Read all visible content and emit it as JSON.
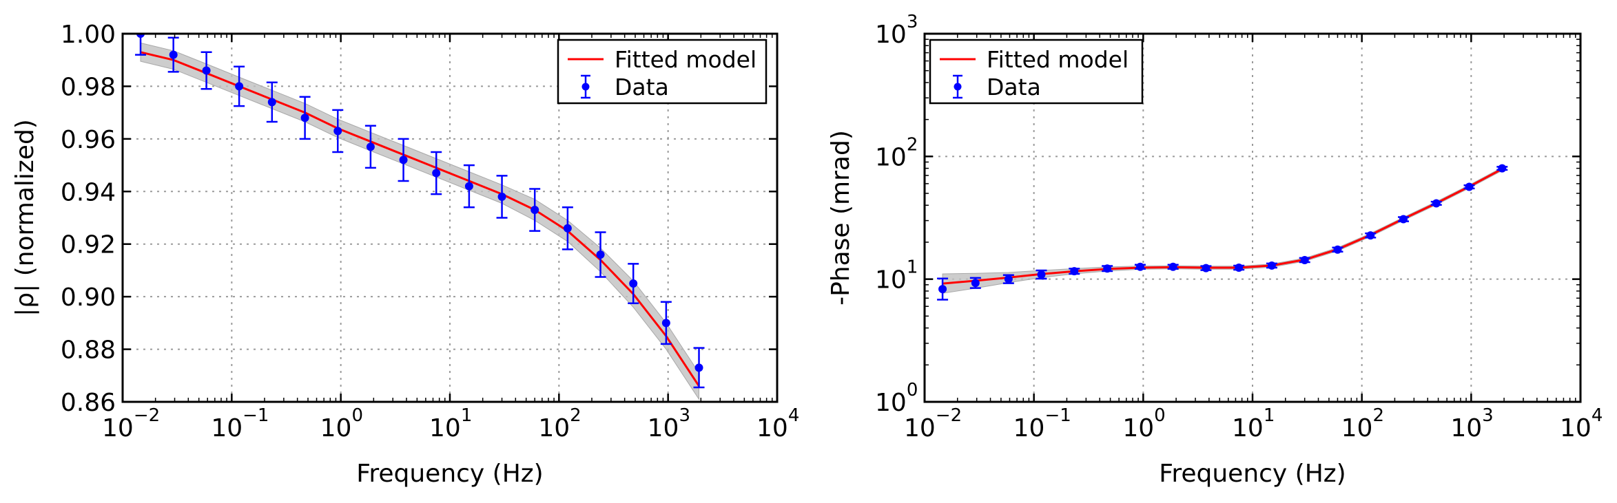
{
  "chart_data": [
    {
      "type": "scatter",
      "xlabel": "Frequency (Hz)",
      "ylabel": "|ρ| (normalized)",
      "xscale": "log",
      "yscale": "linear",
      "xlim": [
        0.01,
        10000
      ],
      "ylim": [
        0.86,
        1.0
      ],
      "xticks": [
        0.01,
        0.1,
        1,
        10,
        100,
        1000,
        10000
      ],
      "xtick_labels": [
        [
          "10",
          "−2"
        ],
        [
          "10",
          "−1"
        ],
        [
          "10",
          "0"
        ],
        [
          "10",
          "1"
        ],
        [
          "10",
          "2"
        ],
        [
          "10",
          "3"
        ],
        [
          "10",
          "4"
        ]
      ],
      "yticks": [
        0.86,
        0.88,
        0.9,
        0.92,
        0.94,
        0.96,
        0.98,
        1.0
      ],
      "ytick_labels": [
        "0.86",
        "0.88",
        "0.90",
        "0.92",
        "0.94",
        "0.96",
        "0.98",
        "1.00"
      ],
      "grid": true,
      "legend": {
        "position": "top-right",
        "entries": [
          "Fitted model",
          "Data"
        ]
      },
      "series": [
        {
          "name": "Data",
          "style": "points_with_errorbars",
          "color": "#0000ff",
          "x": [
            0.0146,
            0.0292,
            0.0586,
            0.117,
            0.234,
            0.469,
            0.938,
            1.875,
            3.75,
            7.5,
            15,
            30,
            60,
            120,
            240,
            480,
            960,
            1920
          ],
          "y": [
            1.0,
            0.992,
            0.986,
            0.98,
            0.974,
            0.968,
            0.963,
            0.957,
            0.952,
            0.947,
            0.942,
            0.938,
            0.933,
            0.926,
            0.916,
            0.905,
            0.89,
            0.873
          ],
          "yerr": [
            0.008,
            0.0065,
            0.007,
            0.0075,
            0.0075,
            0.008,
            0.008,
            0.008,
            0.008,
            0.008,
            0.008,
            0.008,
            0.008,
            0.008,
            0.0085,
            0.0075,
            0.008,
            0.0075
          ]
        },
        {
          "name": "Fitted model",
          "style": "line_with_band",
          "color": "#ff0000",
          "band_color": "#c0c0c0",
          "x": [
            0.0146,
            0.0292,
            0.0586,
            0.117,
            0.234,
            0.469,
            0.938,
            1.875,
            3.75,
            7.5,
            15,
            30,
            60,
            120,
            240,
            480,
            960,
            1920
          ],
          "y": [
            0.993,
            0.99,
            0.985,
            0.98,
            0.975,
            0.97,
            0.964,
            0.959,
            0.954,
            0.949,
            0.944,
            0.939,
            0.933,
            0.925,
            0.914,
            0.901,
            0.885,
            0.866
          ],
          "band": [
            0.0035,
            0.0035,
            0.0035,
            0.0035,
            0.0035,
            0.0035,
            0.0035,
            0.0035,
            0.0035,
            0.0035,
            0.0035,
            0.0035,
            0.004,
            0.004,
            0.0045,
            0.005,
            0.005,
            0.005
          ]
        }
      ]
    },
    {
      "type": "scatter",
      "xlabel": "Frequency (Hz)",
      "ylabel": "-Phase (mrad)",
      "xscale": "log",
      "yscale": "log",
      "xlim": [
        0.01,
        10000
      ],
      "ylim": [
        1,
        1000
      ],
      "xticks": [
        0.01,
        0.1,
        1,
        10,
        100,
        1000,
        10000
      ],
      "xtick_labels": [
        [
          "10",
          "−2"
        ],
        [
          "10",
          "−1"
        ],
        [
          "10",
          "0"
        ],
        [
          "10",
          "1"
        ],
        [
          "10",
          "2"
        ],
        [
          "10",
          "3"
        ],
        [
          "10",
          "4"
        ]
      ],
      "yticks": [
        1,
        10,
        100,
        1000
      ],
      "ytick_labels": [
        [
          "10",
          "0"
        ],
        [
          "10",
          "1"
        ],
        [
          "10",
          "2"
        ],
        [
          "10",
          "3"
        ]
      ],
      "grid": true,
      "legend": {
        "position": "top-left",
        "entries": [
          "Fitted model",
          "Data"
        ]
      },
      "series": [
        {
          "name": "Data",
          "style": "points_with_errorbars",
          "color": "#0000ff",
          "x": [
            0.0146,
            0.0292,
            0.0586,
            0.117,
            0.234,
            0.469,
            0.938,
            1.875,
            3.75,
            7.5,
            15,
            30,
            60,
            120,
            240,
            480,
            960,
            1920
          ],
          "y": [
            8.3,
            9.3,
            10.0,
            10.9,
            11.6,
            12.2,
            12.6,
            12.6,
            12.3,
            12.4,
            12.9,
            14.3,
            17.4,
            22.7,
            30.8,
            41.5,
            56.5,
            80.0
          ],
          "yerr_factor": [
            1.22,
            1.1,
            1.08,
            1.08,
            1.05,
            1.05,
            1.04,
            1.04,
            1.04,
            1.04,
            1.04,
            1.04,
            1.04,
            1.04,
            1.04,
            1.03,
            1.03,
            1.03
          ]
        },
        {
          "name": "Fitted model",
          "style": "line_with_band",
          "color": "#ff0000",
          "band_color": "#c0c0c0",
          "x": [
            0.0146,
            0.0292,
            0.0586,
            0.117,
            0.234,
            0.469,
            0.938,
            1.875,
            3.75,
            7.5,
            15,
            30,
            60,
            120,
            240,
            480,
            960,
            1920
          ],
          "y": [
            9.2,
            9.7,
            10.3,
            11.0,
            11.6,
            12.1,
            12.4,
            12.5,
            12.4,
            12.4,
            12.9,
            14.4,
            17.5,
            22.9,
            31.0,
            41.6,
            56.8,
            79.0
          ],
          "band_factor": [
            1.2,
            1.15,
            1.1,
            1.07,
            1.05,
            1.04,
            1.03,
            1.03,
            1.03,
            1.03,
            1.03,
            1.03,
            1.03,
            1.03,
            1.03,
            1.03,
            1.03,
            1.03
          ]
        }
      ]
    }
  ]
}
